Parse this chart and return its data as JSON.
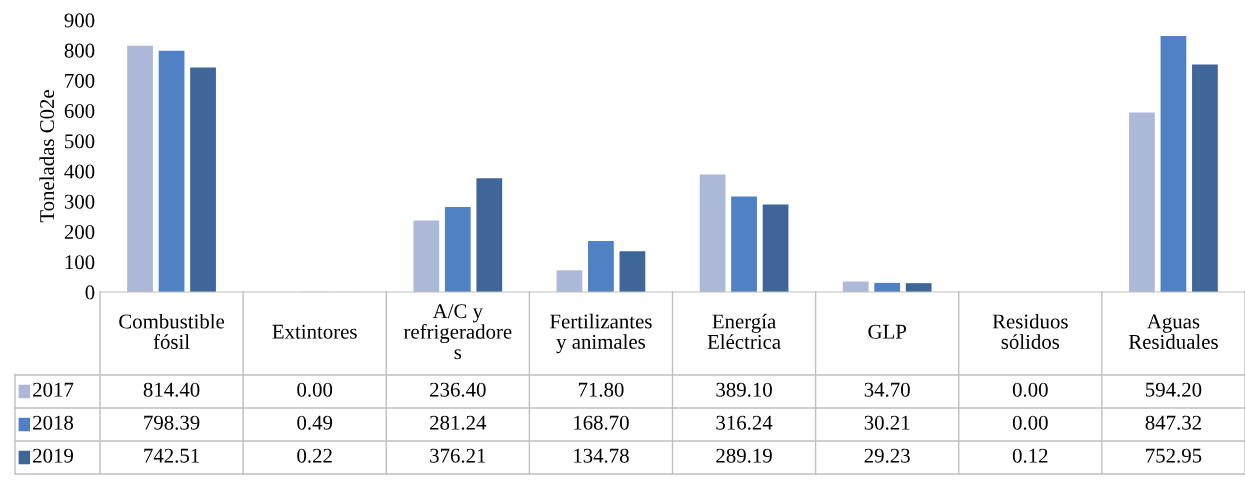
{
  "chart_data": {
    "type": "bar",
    "ylabel": "Toneladas C02e",
    "categories": [
      "Combustible\nfósil",
      "Extintores",
      "A/C y\nrefrigeradore\ns",
      "Fertilizantes\ny animales",
      "Energía\nEléctrica",
      "GLP",
      "Residuos\nsólidos",
      "Aguas\nResiduales"
    ],
    "series": [
      {
        "name": "2017",
        "color": "#adb9d8",
        "values": [
          814.4,
          0.0,
          236.4,
          71.8,
          389.1,
          34.7,
          0.0,
          594.2
        ],
        "value_labels": [
          "814.40",
          "0.00",
          "236.40",
          "71.80",
          "389.10",
          "34.70",
          "0.00",
          "594.20"
        ]
      },
      {
        "name": "2018",
        "color": "#4f81c4",
        "values": [
          798.39,
          0.49,
          281.24,
          168.7,
          316.24,
          30.21,
          0.0,
          847.32
        ],
        "value_labels": [
          "798.39",
          "0.49",
          "281.24",
          "168.70",
          "316.24",
          "30.21",
          "0.00",
          "847.32"
        ]
      },
      {
        "name": "2019",
        "color": "#3e6699",
        "values": [
          742.51,
          0.22,
          376.21,
          134.78,
          289.19,
          29.23,
          0.12,
          752.95
        ],
        "value_labels": [
          "742.51",
          "0.22",
          "376.21",
          "134.78",
          "289.19",
          "29.23",
          "0.12",
          "752.95"
        ]
      }
    ],
    "ylim": [
      0,
      900
    ],
    "yticks": [
      0,
      100,
      200,
      300,
      400,
      500,
      600,
      700,
      800,
      900
    ],
    "grid": false,
    "legend": "bottom"
  }
}
